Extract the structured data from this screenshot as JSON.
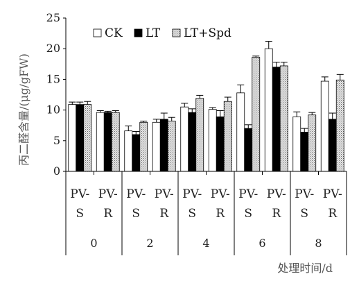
{
  "chart_data": {
    "type": "bar",
    "ylabel": "丙二醛含量/(μg/gFW)",
    "xlabel": "处理时间/d",
    "ylim": [
      0,
      25
    ],
    "yticks": [
      0,
      5,
      10,
      15,
      20,
      25
    ],
    "groups": [
      "0",
      "2",
      "4",
      "6",
      "8"
    ],
    "categories": [
      {
        "group": "0",
        "label": [
          "PV-",
          "S"
        ]
      },
      {
        "group": "0",
        "label": [
          "PV-",
          "R"
        ]
      },
      {
        "group": "2",
        "label": [
          "PV-",
          "S"
        ]
      },
      {
        "group": "2",
        "label": [
          "PV-",
          "R"
        ]
      },
      {
        "group": "4",
        "label": [
          "PV-",
          "S"
        ]
      },
      {
        "group": "4",
        "label": [
          "PV-",
          "R"
        ]
      },
      {
        "group": "6",
        "label": [
          "PV-",
          "S"
        ]
      },
      {
        "group": "6",
        "label": [
          "PV-",
          "R"
        ]
      },
      {
        "group": "8",
        "label": [
          "PV-",
          "S"
        ]
      },
      {
        "group": "8",
        "label": [
          "PV-",
          "R"
        ]
      }
    ],
    "series": [
      {
        "name": "CK",
        "fill": "#ffffff",
        "pattern": "none",
        "values": [
          10.9,
          9.6,
          6.6,
          8.0,
          10.5,
          10.1,
          12.8,
          20.0,
          8.9,
          14.7
        ],
        "errors": [
          0.4,
          0.3,
          0.8,
          0.5,
          0.6,
          0.3,
          1.3,
          1.2,
          0.8,
          0.7
        ]
      },
      {
        "name": "LT",
        "fill": "#000000",
        "pattern": "none",
        "values": [
          10.9,
          9.6,
          6.0,
          8.5,
          9.6,
          8.9,
          7.0,
          17.0,
          6.4,
          8.5
        ],
        "errors": [
          0.4,
          0.2,
          0.5,
          1.0,
          0.6,
          1.0,
          0.6,
          0.8,
          0.6,
          1.0
        ]
      },
      {
        "name": "LT+Spd",
        "fill": "#d8d8d8",
        "pattern": "dots",
        "values": [
          10.9,
          9.6,
          8.0,
          8.2,
          11.9,
          11.4,
          18.6,
          17.2,
          9.2,
          14.9
        ],
        "errors": [
          0.5,
          0.3,
          0.2,
          0.6,
          0.5,
          0.7,
          0.2,
          0.6,
          0.4,
          0.9
        ]
      }
    ],
    "legend_position": "top"
  }
}
